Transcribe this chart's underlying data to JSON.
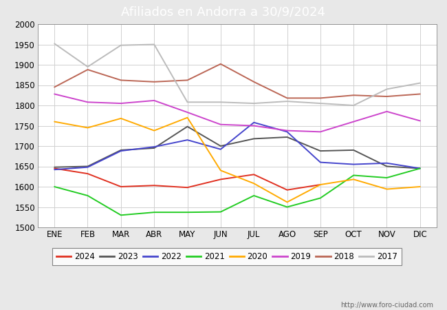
{
  "title": "Afiliados en Andorra a 30/9/2024",
  "title_bg": "#4d94d4",
  "ylim": [
    1500,
    2000
  ],
  "yticks": [
    1500,
    1550,
    1600,
    1650,
    1700,
    1750,
    1800,
    1850,
    1900,
    1950,
    2000
  ],
  "months": [
    "ENE",
    "FEB",
    "MAR",
    "ABR",
    "MAY",
    "JUN",
    "JUL",
    "AGO",
    "SEP",
    "OCT",
    "NOV",
    "DIC"
  ],
  "series": {
    "2024": {
      "color": "#e03020",
      "data": [
        1645,
        1632,
        1600,
        1603,
        1598,
        1618,
        1630,
        1592,
        1605,
        null,
        null,
        null
      ]
    },
    "2023": {
      "color": "#555555",
      "data": [
        1648,
        1650,
        1690,
        1695,
        1748,
        1700,
        1718,
        1722,
        1688,
        1690,
        1650,
        1645
      ]
    },
    "2022": {
      "color": "#4444cc",
      "data": [
        1642,
        1648,
        1688,
        1698,
        1715,
        1692,
        1758,
        1735,
        1660,
        1655,
        1658,
        1645
      ]
    },
    "2021": {
      "color": "#22cc22",
      "data": [
        1600,
        1578,
        1530,
        1537,
        1537,
        1538,
        1578,
        1550,
        1572,
        1628,
        1622,
        1645
      ]
    },
    "2020": {
      "color": "#ffaa00",
      "data": [
        1760,
        1745,
        1768,
        1738,
        1770,
        1640,
        1608,
        1562,
        1605,
        1618,
        1594,
        1600
      ]
    },
    "2019": {
      "color": "#cc44cc",
      "data": [
        1828,
        1808,
        1805,
        1812,
        1783,
        1753,
        1750,
        1738,
        1735,
        1760,
        1785,
        1762
      ]
    },
    "2018": {
      "color": "#bb6655",
      "data": [
        1845,
        1888,
        1862,
        1858,
        1862,
        1902,
        1858,
        1818,
        1818,
        1825,
        1822,
        1828
      ]
    },
    "2017": {
      "color": "#bbbbbb",
      "data": [
        1952,
        1895,
        1948,
        1950,
        1808,
        1808,
        1805,
        1810,
        1805,
        1800,
        1840,
        1855
      ]
    }
  },
  "legend_order": [
    "2024",
    "2023",
    "2022",
    "2021",
    "2020",
    "2019",
    "2018",
    "2017"
  ],
  "watermark": "http://www.foro-ciudad.com",
  "bg_color": "#e8e8e8",
  "plot_bg": "#ffffff"
}
